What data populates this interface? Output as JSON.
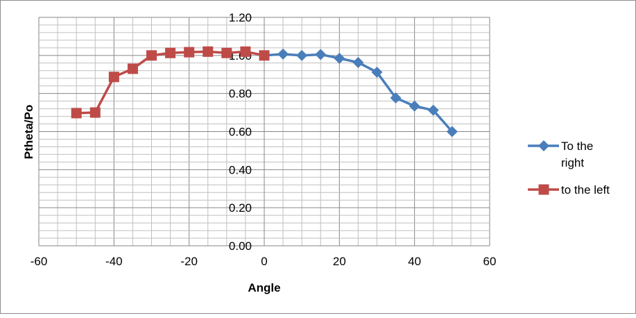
{
  "chart_data": {
    "type": "line",
    "title": "",
    "xlabel": "Angle",
    "ylabel": "Ptheta/Po",
    "xlim": [
      -60,
      60
    ],
    "ylim": [
      0,
      1.2
    ],
    "x_ticks": [
      "-60",
      "-40",
      "-20",
      "0",
      "20",
      "40",
      "60"
    ],
    "y_ticks": [
      "0.00",
      "0.20",
      "0.40",
      "0.60",
      "0.80",
      "1.00",
      "1.20"
    ],
    "grid": true,
    "legend": "right",
    "series": [
      {
        "name": "To the right",
        "color": "#4a7ebb",
        "marker": "diamond",
        "x": [
          0,
          5,
          10,
          15,
          20,
          25,
          30,
          35,
          40,
          45,
          50
        ],
        "y": [
          1.0,
          1.007,
          1.0,
          1.005,
          0.985,
          0.963,
          0.912,
          0.777,
          0.734,
          0.712,
          0.6
        ]
      },
      {
        "name": "to the left",
        "color": "#be4b48",
        "marker": "square",
        "x": [
          -50,
          -45,
          -40,
          -35,
          -30,
          -25,
          -20,
          -15,
          -10,
          -5,
          0
        ],
        "y": [
          0.697,
          0.7,
          0.887,
          0.93,
          1.0,
          1.013,
          1.017,
          1.02,
          1.013,
          1.02,
          1.0
        ]
      }
    ]
  }
}
